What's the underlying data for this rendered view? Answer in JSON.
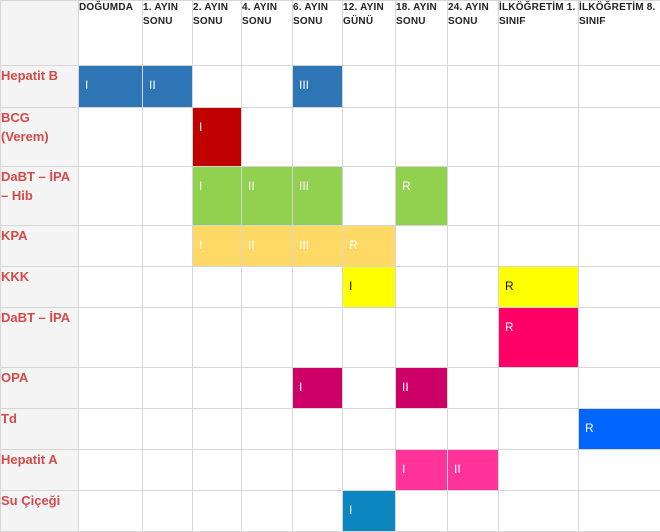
{
  "columns": [
    "",
    "DOĞUMDA",
    "1.  AYIN SONU",
    "2.  AYIN SONU",
    "4.  AYIN SONU",
    "6.  AYIN SONU",
    "12.  AYIN GÜNÜ",
    "18. AYIN SONU",
    "24. AYIN SONU",
    "İLKÖĞRETİM 1. SINIF",
    "İLKÖĞRETİM 8. SINIF"
  ],
  "rows": [
    {
      "name": "Hepatit B",
      "cells": [
        {
          "dose": "I",
          "color": "#2e75b6"
        },
        {
          "dose": "II",
          "color": "#2e75b6"
        },
        null,
        null,
        {
          "dose": "III",
          "color": "#2e75b6"
        },
        null,
        null,
        null,
        null,
        null
      ]
    },
    {
      "name": "BCG (Verem)",
      "cells": [
        null,
        null,
        {
          "dose": "I",
          "color": "#c00000"
        },
        null,
        null,
        null,
        null,
        null,
        null,
        null
      ]
    },
    {
      "name": "DaBT – İPA – Hib",
      "cells": [
        null,
        null,
        {
          "dose": "I",
          "color": "#92d050"
        },
        {
          "dose": "II",
          "color": "#92d050"
        },
        {
          "dose": "III",
          "color": "#92d050"
        },
        null,
        {
          "dose": "R",
          "color": "#92d050"
        },
        null,
        null,
        null
      ]
    },
    {
      "name": "KPA",
      "cells": [
        null,
        null,
        {
          "dose": "I",
          "color": "#ffd966"
        },
        {
          "dose": "II",
          "color": "#ffd966"
        },
        {
          "dose": "III",
          "color": "#ffd966"
        },
        {
          "dose": "R",
          "color": "#ffd966"
        },
        null,
        null,
        null,
        null
      ]
    },
    {
      "name": "KKK",
      "cells": [
        null,
        null,
        null,
        null,
        null,
        {
          "dose": "I",
          "color": "#ffff00",
          "dark": true
        },
        null,
        null,
        {
          "dose": "R",
          "color": "#ffff00",
          "dark": true
        },
        null
      ]
    },
    {
      "name": "DaBT – İPA",
      "cells": [
        null,
        null,
        null,
        null,
        null,
        null,
        null,
        null,
        {
          "dose": "R",
          "color": "#ff0066"
        },
        null
      ]
    },
    {
      "name": "OPA",
      "cells": [
        null,
        null,
        null,
        null,
        {
          "dose": "I",
          "color": "#cc0066"
        },
        null,
        {
          "dose": "II",
          "color": "#cc0066"
        },
        null,
        null,
        null
      ]
    },
    {
      "name": "Td",
      "cells": [
        null,
        null,
        null,
        null,
        null,
        null,
        null,
        null,
        null,
        {
          "dose": "R",
          "color": "#0066ff"
        }
      ]
    },
    {
      "name": "Hepatit A",
      "cells": [
        null,
        null,
        null,
        null,
        null,
        null,
        {
          "dose": "I",
          "color": "#ff3399"
        },
        {
          "dose": "II",
          "color": "#ff3399"
        },
        null,
        null
      ]
    },
    {
      "name": "Su Çiçeği",
      "cells": [
        null,
        null,
        null,
        null,
        null,
        {
          "dose": "I",
          "color": "#0b86c1"
        },
        null,
        null,
        null,
        null
      ]
    }
  ]
}
